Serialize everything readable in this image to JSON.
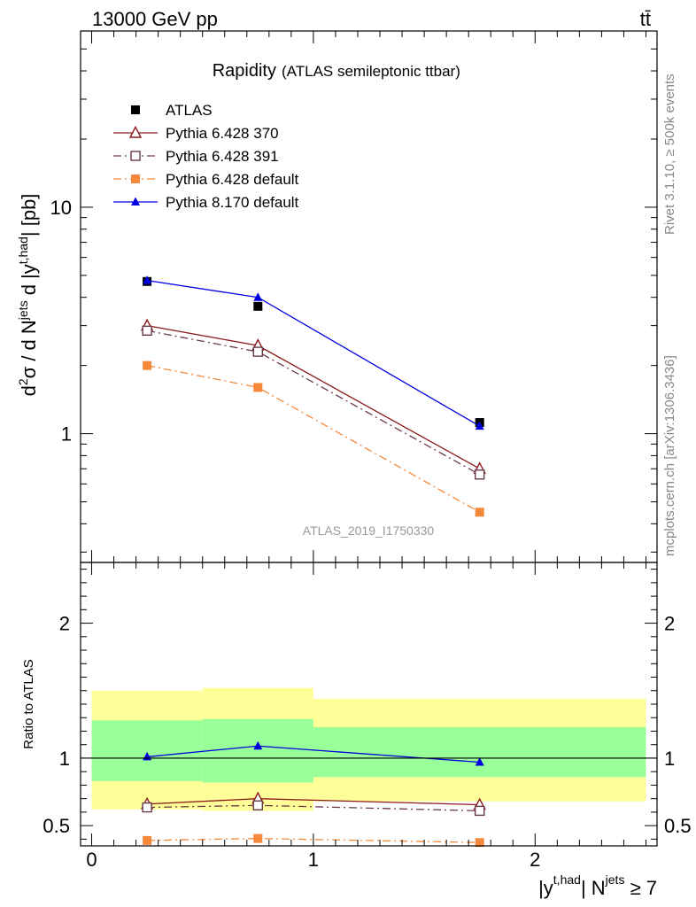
{
  "header": {
    "left": "13000 GeV pp",
    "right": "tt̄"
  },
  "side_text": {
    "rivet": "Rivet 3.1.10, ≥ 500k events",
    "source": "mcplots.cern.ch [arXiv:1306.3436]"
  },
  "chart_data": [
    {
      "type": "line",
      "title": "Rapidity",
      "subtitle": "(ATLAS semileptonic ttbar)",
      "analysis_tag": "ATLAS_2019_I1750330",
      "ylabel": {
        "base": "d",
        "sup1": "2",
        "sigma": "σ  /  d N",
        "sup2": "jets",
        "d2": " d |y",
        "sup3": "t,had",
        "unit": "| [pb]"
      },
      "yscale": "log",
      "ylim": [
        0.27,
        60
      ],
      "xlim": [
        -0.05,
        2.55
      ],
      "yticks": [
        {
          "value": 1,
          "label": "1"
        },
        {
          "value": 10,
          "label": "10"
        }
      ],
      "legend_position": "top-left",
      "grid": false,
      "series": [
        {
          "name": "ATLAS",
          "marker": "filled-square",
          "line": "none",
          "color": "#000000",
          "x": [
            0.25,
            0.75,
            1.75
          ],
          "y": [
            4.7,
            3.65,
            1.12
          ]
        },
        {
          "name": "Pythia 6.428 370",
          "marker": "open-triangle",
          "line": "solid",
          "color": "#8b1a1a",
          "x": [
            0.25,
            0.75,
            1.75
          ],
          "y": [
            3.0,
            2.45,
            0.7
          ]
        },
        {
          "name": "Pythia 6.428 391",
          "marker": "open-square",
          "line": "dash-dot",
          "color": "#6a3a4a",
          "x": [
            0.25,
            0.75,
            1.75
          ],
          "y": [
            2.85,
            2.3,
            0.66
          ]
        },
        {
          "name": "Pythia 6.428 default",
          "marker": "filled-square",
          "line": "dash-dot",
          "color": "#f5883a",
          "x": [
            0.25,
            0.75,
            1.75
          ],
          "y": [
            2.0,
            1.6,
            0.45
          ]
        },
        {
          "name": "Pythia 8.170 default",
          "marker": "filled-triangle",
          "line": "solid",
          "color": "#0000e0",
          "x": [
            0.25,
            0.75,
            1.75
          ],
          "y": [
            4.75,
            4.0,
            1.08
          ]
        }
      ]
    },
    {
      "type": "line",
      "ylabel": "Ratio to ATLAS",
      "xlabel": {
        "base": "|y",
        "sup1": "t,had",
        "mid": "| N",
        "sup2": "jets",
        "end": " ≥ 7"
      },
      "ylim": [
        0.35,
        2.45
      ],
      "xlim": [
        -0.05,
        2.55
      ],
      "yticks": [
        {
          "value": 0.5,
          "label": "0.5"
        },
        {
          "value": 1,
          "label": "1"
        },
        {
          "value": 2,
          "label": "2"
        }
      ],
      "xticks": [
        {
          "value": 0,
          "label": "0"
        },
        {
          "value": 1,
          "label": "1"
        },
        {
          "value": 2,
          "label": "2"
        }
      ],
      "reference_line": 1,
      "bands": [
        {
          "x": [
            0.0,
            0.5
          ],
          "yellow": [
            0.62,
            1.5
          ],
          "green": [
            0.83,
            1.28
          ]
        },
        {
          "x": [
            0.5,
            1.0
          ],
          "yellow": [
            0.61,
            1.52
          ],
          "green": [
            0.82,
            1.29
          ]
        },
        {
          "x": [
            1.0,
            2.5
          ],
          "yellow": [
            0.68,
            1.44
          ],
          "green": [
            0.86,
            1.23
          ]
        }
      ],
      "series": [
        {
          "name": "Pythia 6.428 370",
          "marker": "open-triangle",
          "line": "solid",
          "color": "#8b1a1a",
          "x": [
            0.25,
            0.75,
            1.75
          ],
          "y": [
            0.66,
            0.7,
            0.655
          ]
        },
        {
          "name": "Pythia 6.428 391",
          "marker": "open-square",
          "line": "dash-dot",
          "color": "#6a3a4a",
          "x": [
            0.25,
            0.75,
            1.75
          ],
          "y": [
            0.635,
            0.65,
            0.61
          ]
        },
        {
          "name": "Pythia 6.428 default",
          "marker": "filled-square",
          "line": "dash-dot",
          "color": "#f5883a",
          "x": [
            0.25,
            0.75,
            1.75
          ],
          "y": [
            0.39,
            0.405,
            0.375
          ]
        },
        {
          "name": "Pythia 8.170 default",
          "marker": "filled-triangle",
          "line": "solid",
          "color": "#0000e0",
          "x": [
            0.25,
            0.75,
            1.75
          ],
          "y": [
            1.01,
            1.09,
            0.97
          ]
        }
      ]
    }
  ]
}
